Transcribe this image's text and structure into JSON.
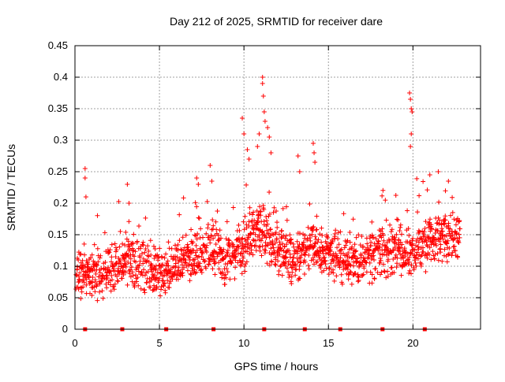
{
  "chart_data": {
    "type": "scatter",
    "title": "Day 212 of 2025, SRMTID for receiver dare",
    "xlabel": "GPS time / hours",
    "ylabel": "SRMTID / TECUs",
    "xlim": [
      0,
      24
    ],
    "ylim": [
      0,
      0.45
    ],
    "xticks": [
      0,
      5,
      10,
      15,
      20
    ],
    "xtick_labels": [
      "0",
      "5",
      "10",
      "15",
      "20"
    ],
    "yticks": [
      0,
      0.05,
      0.1,
      0.15,
      0.2,
      0.25,
      0.3,
      0.35,
      0.4,
      0.45
    ],
    "ytick_labels": [
      "0",
      "0.05",
      "0.1",
      "0.15",
      "0.2",
      "0.25",
      "0.3",
      "0.35",
      "0.4",
      "0.45"
    ],
    "grid": true,
    "marker": "+",
    "color": "#ff0000",
    "outlier_points": [
      {
        "x": 0.6,
        "y": 0.255
      },
      {
        "x": 0.6,
        "y": 0.24
      },
      {
        "x": 0.65,
        "y": 0.21
      },
      {
        "x": 3.1,
        "y": 0.23
      },
      {
        "x": 3.2,
        "y": 0.2
      },
      {
        "x": 7.2,
        "y": 0.24
      },
      {
        "x": 7.3,
        "y": 0.23
      },
      {
        "x": 8.0,
        "y": 0.26
      },
      {
        "x": 8.1,
        "y": 0.235
      },
      {
        "x": 9.9,
        "y": 0.335
      },
      {
        "x": 10.0,
        "y": 0.31
      },
      {
        "x": 10.2,
        "y": 0.285
      },
      {
        "x": 10.3,
        "y": 0.27
      },
      {
        "x": 10.8,
        "y": 0.29
      },
      {
        "x": 10.9,
        "y": 0.31
      },
      {
        "x": 11.1,
        "y": 0.4
      },
      {
        "x": 11.1,
        "y": 0.39
      },
      {
        "x": 11.15,
        "y": 0.37
      },
      {
        "x": 11.2,
        "y": 0.345
      },
      {
        "x": 11.25,
        "y": 0.33
      },
      {
        "x": 11.4,
        "y": 0.32
      },
      {
        "x": 11.5,
        "y": 0.305
      },
      {
        "x": 11.6,
        "y": 0.28
      },
      {
        "x": 13.2,
        "y": 0.275
      },
      {
        "x": 13.3,
        "y": 0.25
      },
      {
        "x": 14.1,
        "y": 0.295
      },
      {
        "x": 14.15,
        "y": 0.28
      },
      {
        "x": 14.2,
        "y": 0.265
      },
      {
        "x": 19.8,
        "y": 0.375
      },
      {
        "x": 19.85,
        "y": 0.365
      },
      {
        "x": 19.9,
        "y": 0.35
      },
      {
        "x": 19.95,
        "y": 0.345
      },
      {
        "x": 19.9,
        "y": 0.31
      },
      {
        "x": 19.85,
        "y": 0.29
      },
      {
        "x": 21.0,
        "y": 0.245
      },
      {
        "x": 21.5,
        "y": 0.25
      },
      {
        "x": 22.1,
        "y": 0.235
      }
    ],
    "bulk_series": {
      "description": "dense scatter of SRMTID samples; baseline level per hour",
      "x_start": 0.05,
      "x_end": 22.8,
      "x_step": 0.02,
      "baseline_hours": [
        0,
        1,
        2,
        3,
        4,
        5,
        6,
        7,
        8,
        9,
        10,
        11,
        12,
        13,
        14,
        15,
        16,
        17,
        18,
        19,
        20,
        21,
        22,
        23
      ],
      "baseline_values": [
        0.09,
        0.085,
        0.095,
        0.11,
        0.1,
        0.09,
        0.1,
        0.12,
        0.13,
        0.11,
        0.13,
        0.16,
        0.12,
        0.11,
        0.13,
        0.12,
        0.11,
        0.11,
        0.12,
        0.13,
        0.12,
        0.14,
        0.15,
        0.15
      ],
      "spread": 0.045
    },
    "bottom_markers": [
      0.6,
      2.8,
      5.4,
      8.2,
      11.2,
      13.6,
      15.7,
      18.2,
      20.7
    ]
  }
}
